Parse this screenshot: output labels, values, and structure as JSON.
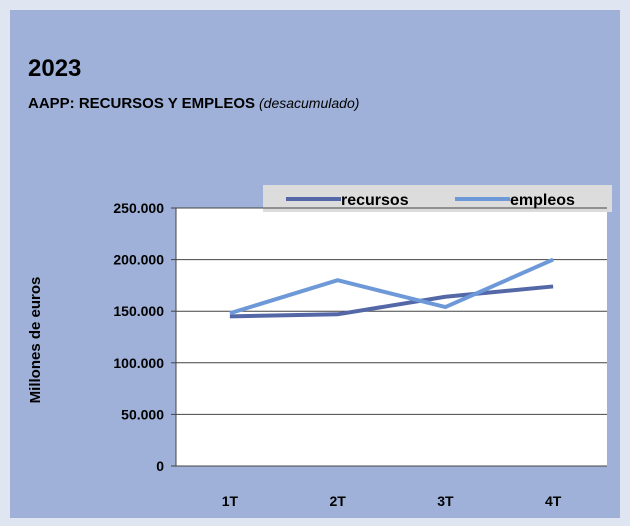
{
  "chart_data": {
    "type": "line",
    "title": "2023",
    "subtitle": "AAPP: RECURSOS Y EMPLEOS",
    "subtitle_note": "(desacumulado)",
    "ylabel": "Millones de euros",
    "categories": [
      "1T",
      "2T",
      "3T",
      "4T"
    ],
    "series": [
      {
        "name": "recursos",
        "color": "#5468a8",
        "values": [
          145000,
          147000,
          164000,
          174000
        ]
      },
      {
        "name": "empleos",
        "color": "#6e99d8",
        "values": [
          148000,
          180000,
          154000,
          200000
        ]
      }
    ],
    "ylim": [
      0,
      250000
    ],
    "yticks": [
      {
        "value": 0,
        "label": "0"
      },
      {
        "value": 50000,
        "label": "50.000"
      },
      {
        "value": 100000,
        "label": "100.000"
      },
      {
        "value": 150000,
        "label": "150.000"
      },
      {
        "value": 200000,
        "label": "200.000"
      },
      {
        "value": 250000,
        "label": "250.000"
      }
    ],
    "grid": true,
    "legend": "top-right"
  }
}
